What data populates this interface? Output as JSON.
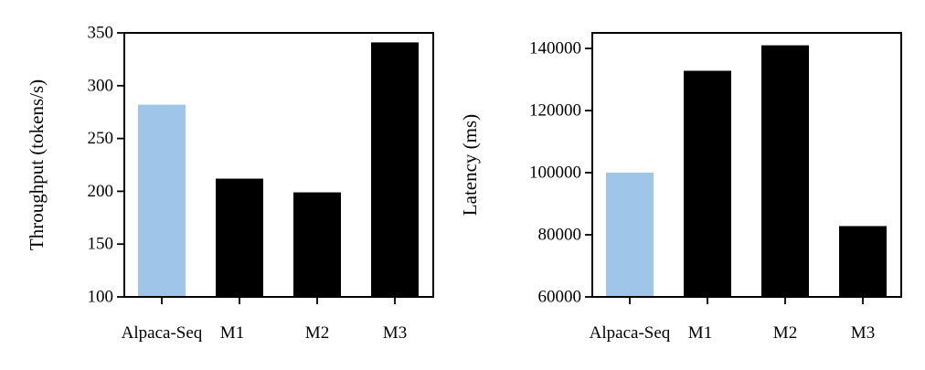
{
  "colors": {
    "baseline": "#9fc5e8",
    "others": "#000000"
  },
  "chart_data": [
    {
      "type": "bar",
      "categories": [
        "Alpaca-Seq",
        "M1",
        "M2",
        "M3"
      ],
      "values": [
        282,
        212,
        199,
        341
      ],
      "colors": [
        "#9fc5e8",
        "#000000",
        "#000000",
        "#000000"
      ],
      "xlabel": "",
      "ylabel": "Throughput (tokens/s)",
      "ylim": [
        100,
        350
      ],
      "yticks": [
        100,
        150,
        200,
        250,
        300,
        350
      ],
      "ytick_labels": [
        "100",
        "150",
        "200",
        "250",
        "300",
        "350"
      ],
      "grid": false,
      "legend": false
    },
    {
      "type": "bar",
      "categories": [
        "Alpaca-Seq",
        "M1",
        "M2",
        "M3"
      ],
      "values": [
        100000,
        132800,
        141000,
        82800
      ],
      "colors": [
        "#9fc5e8",
        "#000000",
        "#000000",
        "#000000"
      ],
      "xlabel": "",
      "ylabel": "Latency (ms)",
      "ylim": [
        60000,
        145000
      ],
      "yticks": [
        60000,
        80000,
        100000,
        120000,
        140000
      ],
      "ytick_labels": [
        "60000",
        "80000",
        "100000",
        "120000",
        "140000"
      ],
      "grid": false,
      "legend": false
    }
  ]
}
